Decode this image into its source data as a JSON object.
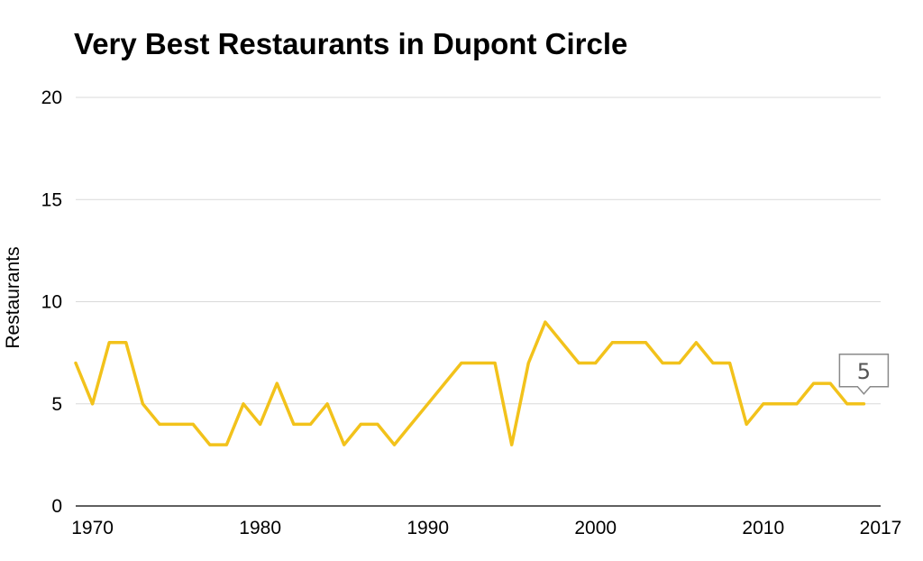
{
  "chart_data": {
    "type": "line",
    "title": "Very Best Restaurants in Dupont Circle",
    "xlabel": "",
    "ylabel": "Restaurants",
    "xlim": [
      1969,
      2017
    ],
    "ylim": [
      0,
      20
    ],
    "x_ticks": [
      "1970",
      "1980",
      "1990",
      "2000",
      "2010",
      "2017"
    ],
    "y_ticks": [
      "0",
      "5",
      "10",
      "15",
      "20"
    ],
    "grid": true,
    "series": [
      {
        "color": "#f2c21b",
        "x": [
          1969,
          1970,
          1971,
          1972,
          1973,
          1974,
          1975,
          1976,
          1977,
          1978,
          1979,
          1980,
          1981,
          1982,
          1983,
          1984,
          1985,
          1986,
          1987,
          1988,
          1989,
          1990,
          1991,
          1992,
          1993,
          1994,
          1995,
          1996,
          1997,
          1998,
          1999,
          2000,
          2001,
          2002,
          2003,
          2004,
          2005,
          2006,
          2007,
          2008,
          2009,
          2010,
          2011,
          2012,
          2013,
          2014,
          2015,
          2016
        ],
        "values": [
          7,
          5,
          8,
          8,
          5,
          4,
          4,
          4,
          3,
          3,
          5,
          4,
          6,
          4,
          4,
          5,
          3,
          4,
          4,
          3,
          4,
          5,
          6,
          7,
          7,
          7,
          3,
          7,
          9,
          8,
          7,
          7,
          8,
          8,
          8,
          7,
          7,
          8,
          7,
          7,
          4,
          5,
          5,
          5,
          6,
          6,
          5,
          5
        ]
      }
    ],
    "annotation": {
      "text": "5"
    }
  }
}
